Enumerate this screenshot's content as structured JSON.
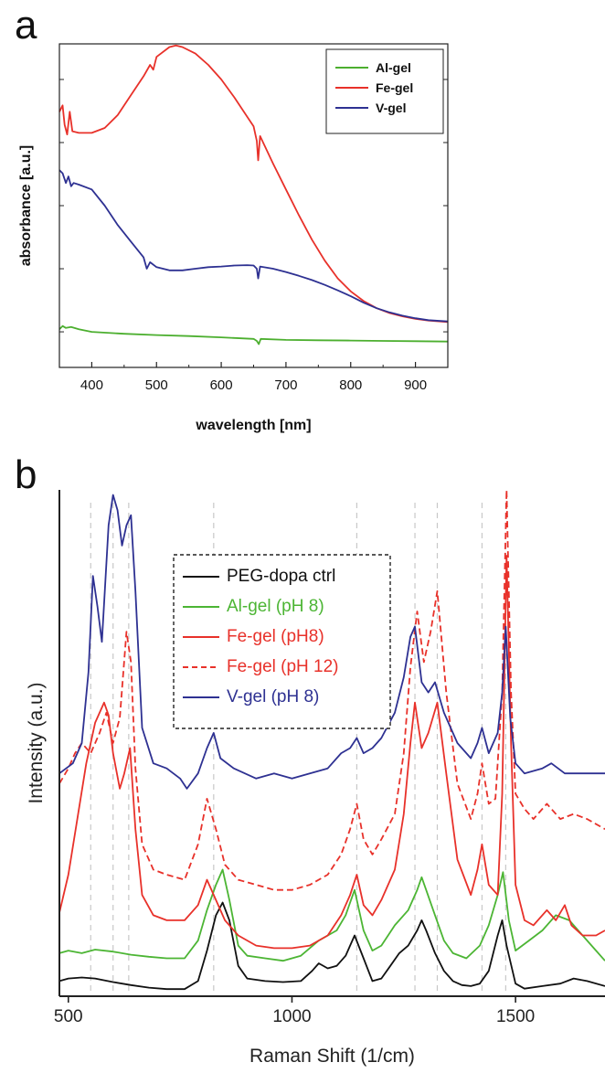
{
  "panels": {
    "a": "a",
    "b": "b"
  },
  "chart_data": [
    {
      "type": "line",
      "panel": "a",
      "xlabel": "wavelength [nm]",
      "ylabel": "absorbance [a.u.]",
      "xlim": [
        350,
        950
      ],
      "xticks": [
        400,
        500,
        600,
        700,
        800,
        900
      ],
      "ylim": [
        0,
        1
      ],
      "y_tick_labels_shown": false,
      "legend_position": "top-right",
      "series": [
        {
          "name": "Al-gel",
          "color": "#4caf2f",
          "x": [
            350,
            355,
            360,
            368,
            380,
            400,
            450,
            500,
            550,
            600,
            650,
            655,
            658,
            661,
            700,
            750,
            800,
            850,
            900,
            950
          ],
          "y": [
            0.118,
            0.128,
            0.122,
            0.125,
            0.118,
            0.11,
            0.104,
            0.1,
            0.097,
            0.093,
            0.088,
            0.082,
            0.072,
            0.088,
            0.085,
            0.084,
            0.083,
            0.082,
            0.081,
            0.08
          ]
        },
        {
          "name": "Fe-gel",
          "color": "#e8312a",
          "x": [
            350,
            355,
            358,
            362,
            366,
            370,
            380,
            400,
            420,
            440,
            460,
            480,
            490,
            495,
            500,
            520,
            530,
            540,
            560,
            580,
            600,
            620,
            640,
            650,
            655,
            657,
            660,
            680,
            700,
            720,
            740,
            760,
            780,
            800,
            820,
            840,
            860,
            880,
            900,
            920,
            950
          ],
          "y": [
            0.79,
            0.81,
            0.75,
            0.72,
            0.79,
            0.73,
            0.725,
            0.725,
            0.74,
            0.78,
            0.84,
            0.9,
            0.935,
            0.92,
            0.96,
            0.99,
            0.995,
            0.99,
            0.97,
            0.935,
            0.89,
            0.835,
            0.775,
            0.745,
            0.7,
            0.64,
            0.715,
            0.63,
            0.55,
            0.47,
            0.395,
            0.33,
            0.275,
            0.235,
            0.205,
            0.183,
            0.168,
            0.158,
            0.15,
            0.145,
            0.14
          ]
        },
        {
          "name": "V-gel",
          "color": "#2e3192",
          "x": [
            350,
            355,
            360,
            364,
            368,
            372,
            380,
            400,
            420,
            440,
            460,
            480,
            485,
            490,
            500,
            520,
            540,
            560,
            580,
            600,
            620,
            640,
            650,
            655,
            657,
            660,
            680,
            700,
            720,
            740,
            760,
            780,
            800,
            820,
            840,
            860,
            880,
            900,
            920,
            950
          ],
          "y": [
            0.61,
            0.6,
            0.57,
            0.59,
            0.56,
            0.57,
            0.565,
            0.55,
            0.5,
            0.44,
            0.39,
            0.34,
            0.305,
            0.325,
            0.31,
            0.3,
            0.3,
            0.305,
            0.31,
            0.312,
            0.315,
            0.316,
            0.315,
            0.305,
            0.275,
            0.312,
            0.305,
            0.295,
            0.283,
            0.27,
            0.255,
            0.238,
            0.22,
            0.2,
            0.183,
            0.17,
            0.16,
            0.152,
            0.146,
            0.142
          ]
        }
      ]
    },
    {
      "type": "line",
      "panel": "b",
      "xlabel": "Raman Shift (1/cm)",
      "ylabel": "Intensity (a.u.)",
      "xlim": [
        480,
        1700
      ],
      "xticks": [
        500,
        1000,
        1500
      ],
      "ylim": [
        0,
        1
      ],
      "y_tick_labels_shown": false,
      "reference_lines_x": [
        550,
        600,
        635,
        825,
        1145,
        1275,
        1325,
        1425,
        1478
      ],
      "legend_position": "upper-middle",
      "legend_border": "dashed",
      "series": [
        {
          "name": "PEG-dopa ctrl",
          "color": "#111111",
          "dash": false,
          "x": [
            480,
            500,
            530,
            560,
            600,
            640,
            680,
            720,
            760,
            790,
            810,
            830,
            845,
            860,
            880,
            900,
            940,
            980,
            1020,
            1045,
            1060,
            1080,
            1100,
            1120,
            1140,
            1160,
            1180,
            1200,
            1220,
            1240,
            1260,
            1280,
            1290,
            1300,
            1320,
            1340,
            1360,
            1380,
            1400,
            1420,
            1440,
            1460,
            1470,
            1480,
            1500,
            1520,
            1560,
            1600,
            1630,
            1660,
            1700
          ],
          "y": [
            0.03,
            0.035,
            0.037,
            0.035,
            0.028,
            0.022,
            0.017,
            0.014,
            0.014,
            0.03,
            0.09,
            0.16,
            0.185,
            0.15,
            0.06,
            0.035,
            0.03,
            0.028,
            0.03,
            0.05,
            0.065,
            0.055,
            0.06,
            0.08,
            0.12,
            0.075,
            0.03,
            0.035,
            0.06,
            0.085,
            0.1,
            0.13,
            0.15,
            0.13,
            0.085,
            0.05,
            0.03,
            0.022,
            0.02,
            0.025,
            0.05,
            0.12,
            0.15,
            0.1,
            0.025,
            0.015,
            0.02,
            0.025,
            0.035,
            0.03,
            0.02
          ]
        },
        {
          "name": "Al-gel (pH 8)",
          "color": "#4cb534",
          "dash": false,
          "x": [
            480,
            500,
            530,
            560,
            600,
            640,
            680,
            720,
            760,
            790,
            810,
            830,
            845,
            860,
            880,
            900,
            940,
            980,
            1020,
            1060,
            1100,
            1120,
            1140,
            1160,
            1180,
            1200,
            1230,
            1260,
            1280,
            1290,
            1300,
            1320,
            1340,
            1360,
            1390,
            1420,
            1440,
            1460,
            1472,
            1485,
            1500,
            1530,
            1560,
            1590,
            1620,
            1650,
            1680,
            1700
          ],
          "y": [
            0.085,
            0.09,
            0.085,
            0.092,
            0.088,
            0.082,
            0.078,
            0.075,
            0.075,
            0.11,
            0.17,
            0.22,
            0.25,
            0.19,
            0.1,
            0.08,
            0.075,
            0.07,
            0.08,
            0.11,
            0.13,
            0.16,
            0.21,
            0.13,
            0.09,
            0.1,
            0.14,
            0.17,
            0.21,
            0.235,
            0.21,
            0.16,
            0.11,
            0.085,
            0.075,
            0.1,
            0.14,
            0.2,
            0.245,
            0.15,
            0.09,
            0.11,
            0.13,
            0.16,
            0.15,
            0.12,
            0.09,
            0.07
          ]
        },
        {
          "name": "Fe-gel (pH8)",
          "color": "#e8312a",
          "dash": false,
          "x": [
            480,
            500,
            520,
            540,
            560,
            580,
            590,
            600,
            615,
            625,
            638,
            650,
            665,
            690,
            720,
            760,
            790,
            810,
            830,
            850,
            880,
            920,
            960,
            1000,
            1040,
            1080,
            1110,
            1130,
            1145,
            1160,
            1180,
            1200,
            1230,
            1250,
            1265,
            1275,
            1290,
            1305,
            1325,
            1345,
            1370,
            1400,
            1415,
            1425,
            1440,
            1460,
            1470,
            1480,
            1490,
            1500,
            1520,
            1540,
            1570,
            1590,
            1610,
            1625,
            1650,
            1680,
            1700
          ],
          "y": [
            0.165,
            0.24,
            0.35,
            0.46,
            0.54,
            0.58,
            0.555,
            0.48,
            0.41,
            0.44,
            0.49,
            0.33,
            0.2,
            0.16,
            0.15,
            0.15,
            0.18,
            0.23,
            0.19,
            0.15,
            0.12,
            0.1,
            0.095,
            0.095,
            0.1,
            0.12,
            0.16,
            0.2,
            0.24,
            0.18,
            0.16,
            0.19,
            0.25,
            0.36,
            0.5,
            0.58,
            0.49,
            0.52,
            0.58,
            0.44,
            0.27,
            0.2,
            0.25,
            0.3,
            0.22,
            0.2,
            0.4,
            0.87,
            0.5,
            0.22,
            0.15,
            0.14,
            0.17,
            0.15,
            0.18,
            0.14,
            0.12,
            0.12,
            0.13
          ]
        },
        {
          "name": "Fe-gel (pH 12)",
          "color": "#e8312a",
          "dash": true,
          "x": [
            480,
            500,
            515,
            530,
            550,
            570,
            585,
            600,
            615,
            630,
            640,
            650,
            665,
            690,
            720,
            760,
            790,
            810,
            830,
            850,
            880,
            920,
            960,
            1000,
            1040,
            1080,
            1110,
            1130,
            1145,
            1160,
            1180,
            1200,
            1230,
            1250,
            1265,
            1280,
            1295,
            1310,
            1325,
            1345,
            1370,
            1400,
            1415,
            1425,
            1440,
            1455,
            1470,
            1480,
            1490,
            1500,
            1520,
            1540,
            1570,
            1600,
            1630,
            1660,
            1700
          ],
          "y": [
            0.42,
            0.45,
            0.48,
            0.5,
            0.48,
            0.52,
            0.56,
            0.5,
            0.55,
            0.72,
            0.66,
            0.45,
            0.3,
            0.25,
            0.24,
            0.23,
            0.3,
            0.39,
            0.33,
            0.26,
            0.23,
            0.22,
            0.21,
            0.21,
            0.22,
            0.24,
            0.28,
            0.33,
            0.38,
            0.31,
            0.28,
            0.31,
            0.36,
            0.48,
            0.65,
            0.76,
            0.66,
            0.72,
            0.8,
            0.6,
            0.42,
            0.35,
            0.4,
            0.46,
            0.38,
            0.39,
            0.6,
            1.0,
            0.6,
            0.4,
            0.37,
            0.35,
            0.38,
            0.35,
            0.36,
            0.35,
            0.33
          ]
        },
        {
          "name": "V-gel (pH 8)",
          "color": "#2e3192",
          "dash": false,
          "x": [
            480,
            510,
            530,
            545,
            555,
            565,
            575,
            590,
            600,
            610,
            620,
            630,
            640,
            650,
            665,
            690,
            720,
            750,
            765,
            790,
            810,
            825,
            840,
            870,
            920,
            960,
            1000,
            1040,
            1080,
            1110,
            1130,
            1145,
            1160,
            1180,
            1200,
            1230,
            1250,
            1265,
            1275,
            1290,
            1305,
            1320,
            1340,
            1370,
            1400,
            1415,
            1425,
            1440,
            1460,
            1470,
            1478,
            1488,
            1500,
            1520,
            1560,
            1580,
            1610,
            1650,
            1700
          ],
          "y": [
            0.44,
            0.46,
            0.5,
            0.64,
            0.83,
            0.77,
            0.7,
            0.93,
            0.99,
            0.96,
            0.89,
            0.93,
            0.95,
            0.8,
            0.53,
            0.46,
            0.45,
            0.43,
            0.41,
            0.44,
            0.49,
            0.52,
            0.47,
            0.45,
            0.43,
            0.44,
            0.43,
            0.44,
            0.45,
            0.48,
            0.49,
            0.51,
            0.48,
            0.49,
            0.51,
            0.56,
            0.63,
            0.71,
            0.73,
            0.62,
            0.6,
            0.62,
            0.56,
            0.5,
            0.47,
            0.5,
            0.53,
            0.48,
            0.52,
            0.6,
            0.73,
            0.55,
            0.46,
            0.44,
            0.45,
            0.46,
            0.44,
            0.44,
            0.44
          ]
        }
      ]
    }
  ]
}
